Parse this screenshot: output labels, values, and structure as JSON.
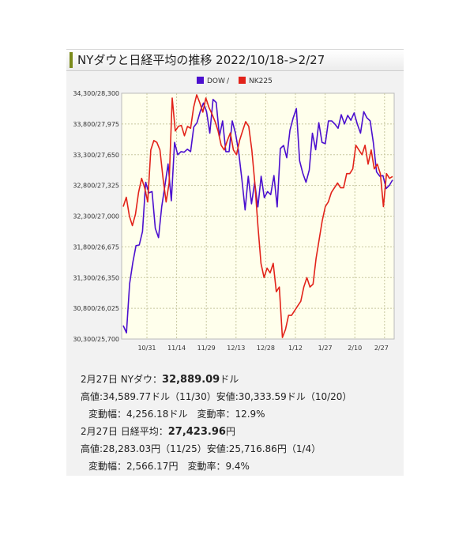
{
  "title": "NYダウと日経平均の推移 2022/10/18->2/27",
  "colors": {
    "dow": "#4b0fcf",
    "nk": "#e2231a",
    "plot_bg": "#ffffec",
    "grid": "#c8c8a0"
  },
  "legend": {
    "dow": "DOW",
    "sep": "/",
    "nk": "NK225"
  },
  "chart_data": {
    "type": "line",
    "title": "NYダウと日経平均の推移 2022/10/18->2/27",
    "y_tick_labels": [
      "34,300/28,300",
      "33,800/27,975",
      "33,300/27,650",
      "32,800/27,325",
      "32,300/27,000",
      "31,800/26,675",
      "31,300/26,350",
      "30,800/26,025",
      "30,300/25,700"
    ],
    "x_tick_labels": [
      "10/31",
      "11/14",
      "11/29",
      "12/13",
      "12/28",
      "1/12",
      "1/27",
      "2/10",
      "2/27"
    ],
    "grid": true,
    "legend_position": "top",
    "series": [
      {
        "name": "DOW",
        "axis": "left",
        "ylim": [
          30300,
          34300
        ],
        "values": [
          30520,
          30400,
          31200,
          31550,
          31820,
          31830,
          32050,
          32850,
          32680,
          32700,
          32100,
          31950,
          32450,
          32800,
          33150,
          32550,
          33500,
          33300,
          33350,
          33340,
          33390,
          33350,
          33750,
          33820,
          34000,
          34140,
          34000,
          33650,
          34200,
          34150,
          33600,
          33850,
          33350,
          33350,
          33850,
          33650,
          33350,
          32900,
          32400,
          32950,
          32500,
          32850,
          32450,
          32950,
          32600,
          32700,
          32650,
          32960,
          32450,
          33400,
          33450,
          33250,
          33700,
          33900,
          34050,
          33200,
          33000,
          32850,
          33050,
          33650,
          33380,
          33820,
          33500,
          33480,
          33850,
          33850,
          33800,
          33730,
          33950,
          33800,
          33940,
          33860,
          33980,
          33800,
          33650,
          34000,
          33900,
          33850,
          33500,
          33020,
          32950,
          32960,
          32750,
          32800,
          32890
        ]
      },
      {
        "name": "NK225",
        "axis": "right",
        "ylim": [
          25700,
          28300
        ],
        "values": [
          27100,
          27200,
          27000,
          26900,
          27020,
          27250,
          27400,
          27300,
          27150,
          27700,
          27800,
          27780,
          27700,
          27400,
          27150,
          27350,
          28250,
          27900,
          27950,
          27960,
          27850,
          27950,
          27930,
          28150,
          28283,
          28200,
          28100,
          28250,
          28150,
          28080,
          28000,
          27900,
          27750,
          27700,
          27800,
          27880,
          27700,
          27650,
          27800,
          27900,
          28000,
          27950,
          27700,
          27350,
          26900,
          26500,
          26350,
          26450,
          26400,
          26500,
          26200,
          26250,
          25716,
          25800,
          25950,
          25950,
          26000,
          26050,
          26100,
          26250,
          26350,
          26250,
          26280,
          26550,
          26750,
          26950,
          27100,
          27150,
          27250,
          27300,
          27350,
          27300,
          27300,
          27450,
          27450,
          27500,
          27750,
          27700,
          27650,
          27750,
          27550,
          27700,
          27500,
          27550,
          27450,
          27100,
          27450,
          27400,
          27420
        ]
      }
    ]
  },
  "info": {
    "line1_label": "2月27日 NYダウ：",
    "line1_value": "32,889.09",
    "line1_unit": "ドル",
    "line2": "高値:34,589.77ドル（11/30）安値:30,333.59ドル（10/20）",
    "line3": "変動幅：4,256.18ドル　変動率：12.9%",
    "line4_label": "2月27日 日経平均：",
    "line4_value": "27,423.96",
    "line4_unit": "円",
    "line5": "高値:28,283.03円（11/25）安値:25,716.86円（1/4）",
    "line6": "変動幅：2,566.17円　変動率：9.4%"
  }
}
